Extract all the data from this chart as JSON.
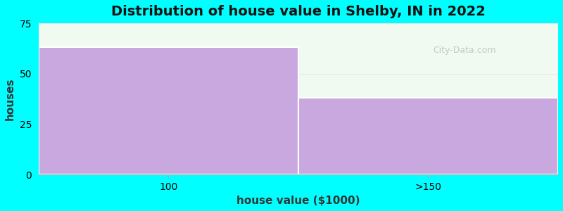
{
  "categories": [
    "100",
    ">150"
  ],
  "values": [
    63,
    38
  ],
  "bar_color": "#c9a8e0",
  "title": "Distribution of house value in Shelby, IN in 2022",
  "xlabel": "house value ($1000)",
  "ylabel": "houses",
  "ylim": [
    0,
    75
  ],
  "yticks": [
    0,
    25,
    50,
    75
  ],
  "background_color": "#00ffff",
  "plot_bg_color": "#f0faf0",
  "title_fontsize": 14,
  "axis_label_fontsize": 11,
  "tick_fontsize": 10,
  "watermark_text": "City-Data.com",
  "bar_edges": [
    0,
    1,
    2
  ],
  "figsize": [
    8.0,
    3.0
  ],
  "dpi": 100
}
